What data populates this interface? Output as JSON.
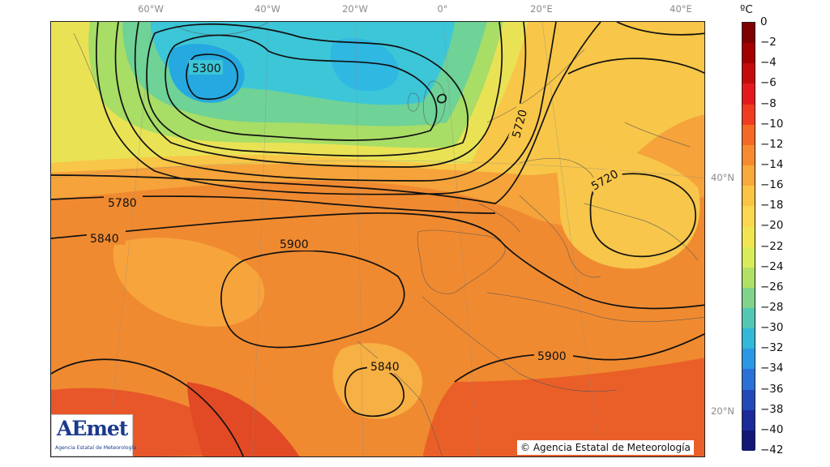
{
  "map": {
    "lon_ticks": [
      "60°W",
      "40°W",
      "20°W",
      "0°",
      "20°E",
      "40°E"
    ],
    "lat_ticks": [
      "40°N",
      "20°N"
    ],
    "contour_labels": [
      "5300",
      "5720",
      "5720",
      "5780",
      "5840",
      "5900",
      "5840",
      "5900"
    ]
  },
  "colorbar": {
    "unit": "ºC",
    "labels": [
      "0",
      "−2",
      "−4",
      "−6",
      "−8",
      "−10",
      "−12",
      "−14",
      "−16",
      "−18",
      "−20",
      "−22",
      "−24",
      "−26",
      "−28",
      "−30",
      "−32",
      "−34",
      "−36",
      "−38",
      "−40",
      "−42"
    ],
    "colors": [
      "#7f0000",
      "#a30000",
      "#c40c0c",
      "#e31a1c",
      "#f03b20",
      "#f46a24",
      "#f78a2e",
      "#f9a83a",
      "#fbc443",
      "#fad74e",
      "#f0e551",
      "#d8ec5a",
      "#b0e164",
      "#7fd48a",
      "#52c8b4",
      "#32b8d8",
      "#2a98e6",
      "#2a70d8",
      "#2349b8",
      "#1a2a98",
      "#111878"
    ],
    "colors_meaning": "fill colours of the colorbar blocks from 0 ºC (top) to −42 ºC (bottom)"
  },
  "logo": {
    "main": "AEmet",
    "sub": "Agencia Estatal de Meteorología"
  },
  "credit": "© Agencia Estatal de Meteorología"
}
